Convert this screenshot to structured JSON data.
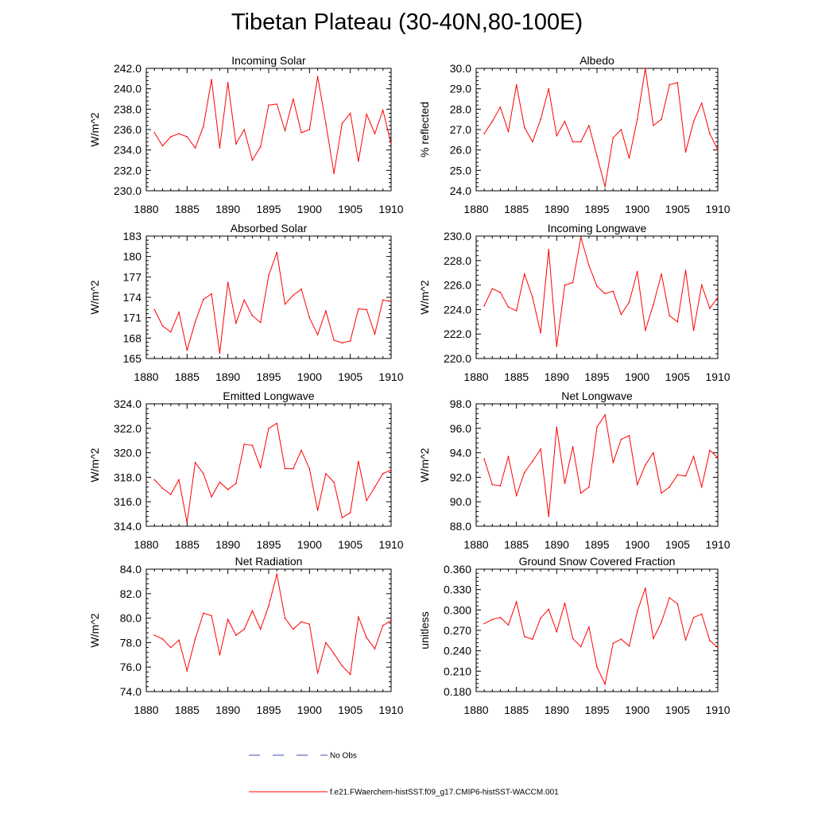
{
  "title": "Tibetan Plateau (30-40N,80-100E)",
  "legend": {
    "no_obs_label": "No Obs",
    "no_obs_color": "#3b4fb8",
    "model_label": "f.e21.FWaerchem-histSST.f09_g17.CMIP6-histSST-WACCM.001",
    "model_color": "#ff0000"
  },
  "chart_data": [
    {
      "type": "line",
      "title": "Incoming Solar",
      "ylabel": "W/m^2",
      "xlim": [
        1880,
        1910
      ],
      "ylim": [
        230,
        242
      ],
      "yticks": [
        "230.0",
        "232.0",
        "234.0",
        "236.0",
        "238.0",
        "240.0",
        "242.0"
      ],
      "xticks": [
        "1880",
        "1885",
        "1890",
        "1895",
        "1900",
        "1905",
        "1910"
      ],
      "x": [
        1881,
        1882,
        1883,
        1884,
        1885,
        1886,
        1887,
        1888,
        1889,
        1890,
        1891,
        1892,
        1893,
        1894,
        1895,
        1896,
        1897,
        1898,
        1899,
        1900,
        1901,
        1902,
        1903,
        1904,
        1905,
        1906,
        1907,
        1908,
        1909,
        1910
      ],
      "values": [
        235.7,
        234.4,
        235.3,
        235.6,
        235.3,
        234.2,
        236.3,
        240.9,
        234.2,
        240.6,
        234.6,
        236.0,
        233.0,
        234.3,
        238.4,
        238.5,
        235.9,
        239.0,
        235.7,
        236.0,
        241.2,
        236.6,
        231.7,
        236.6,
        237.6,
        232.9,
        237.5,
        235.6,
        237.9,
        234.6
      ]
    },
    {
      "type": "line",
      "title": "Albedo",
      "ylabel": "% reflected",
      "xlim": [
        1880,
        1910
      ],
      "ylim": [
        24,
        30
      ],
      "yticks": [
        "24.0",
        "25.0",
        "26.0",
        "27.0",
        "28.0",
        "29.0",
        "30.0"
      ],
      "xticks": [
        "1880",
        "1885",
        "1890",
        "1895",
        "1900",
        "1905",
        "1910"
      ],
      "x": [
        1881,
        1882,
        1883,
        1884,
        1885,
        1886,
        1887,
        1888,
        1889,
        1890,
        1891,
        1892,
        1893,
        1894,
        1895,
        1896,
        1897,
        1898,
        1899,
        1900,
        1901,
        1902,
        1903,
        1904,
        1905,
        1906,
        1907,
        1908,
        1909,
        1910
      ],
      "values": [
        26.8,
        27.4,
        28.1,
        26.9,
        29.2,
        27.1,
        26.4,
        27.5,
        29.0,
        26.7,
        27.4,
        26.4,
        26.4,
        27.2,
        25.7,
        24.2,
        26.6,
        27.0,
        25.6,
        27.5,
        30.0,
        27.2,
        27.5,
        29.2,
        29.3,
        25.9,
        27.4,
        28.3,
        26.8,
        26.0
      ]
    },
    {
      "type": "line",
      "title": "Absorbed Solar",
      "ylabel": "W/m^2",
      "xlim": [
        1880,
        1910
      ],
      "ylim": [
        165,
        183
      ],
      "yticks": [
        "165",
        "168",
        "171",
        "174",
        "177",
        "180",
        "183"
      ],
      "xticks": [
        "1880",
        "1885",
        "1890",
        "1895",
        "1900",
        "1905",
        "1910"
      ],
      "x": [
        1881,
        1882,
        1883,
        1884,
        1885,
        1886,
        1887,
        1888,
        1889,
        1890,
        1891,
        1892,
        1893,
        1894,
        1895,
        1896,
        1897,
        1898,
        1899,
        1900,
        1901,
        1902,
        1903,
        1904,
        1905,
        1906,
        1907,
        1908,
        1909,
        1910
      ],
      "values": [
        172.2,
        169.8,
        168.9,
        171.8,
        166.2,
        170.4,
        173.7,
        174.5,
        165.8,
        176.2,
        170.2,
        173.6,
        171.3,
        170.3,
        177.2,
        180.6,
        173.0,
        174.3,
        175.2,
        171.0,
        168.5,
        172.0,
        167.7,
        167.3,
        167.6,
        172.3,
        172.2,
        168.6,
        173.6,
        173.4
      ]
    },
    {
      "type": "line",
      "title": "Incoming Longwave",
      "ylabel": "W/m^2",
      "xlim": [
        1880,
        1910
      ],
      "ylim": [
        220,
        230
      ],
      "yticks": [
        "220.0",
        "222.0",
        "224.0",
        "226.0",
        "228.0",
        "230.0"
      ],
      "xticks": [
        "1880",
        "1885",
        "1890",
        "1895",
        "1900",
        "1905",
        "1910"
      ],
      "x": [
        1881,
        1882,
        1883,
        1884,
        1885,
        1886,
        1887,
        1888,
        1889,
        1890,
        1891,
        1892,
        1893,
        1894,
        1895,
        1896,
        1897,
        1898,
        1899,
        1900,
        1901,
        1902,
        1903,
        1904,
        1905,
        1906,
        1907,
        1908,
        1909,
        1910
      ],
      "values": [
        224.3,
        225.7,
        225.4,
        224.2,
        223.9,
        226.9,
        225.0,
        222.1,
        228.9,
        221.0,
        226.0,
        226.2,
        229.9,
        227.6,
        225.9,
        225.3,
        225.5,
        223.6,
        224.6,
        227.1,
        222.3,
        224.4,
        226.9,
        223.5,
        223.0,
        227.2,
        222.3,
        226.0,
        224.1,
        225.0
      ]
    },
    {
      "type": "line",
      "title": "Emitted Longwave",
      "ylabel": "W/m^2",
      "xlim": [
        1880,
        1910
      ],
      "ylim": [
        314,
        324
      ],
      "yticks": [
        "314.0",
        "316.0",
        "318.0",
        "320.0",
        "322.0",
        "324.0"
      ],
      "xticks": [
        "1880",
        "1885",
        "1890",
        "1895",
        "1900",
        "1905",
        "1910"
      ],
      "x": [
        1881,
        1882,
        1883,
        1884,
        1885,
        1886,
        1887,
        1888,
        1889,
        1890,
        1891,
        1892,
        1893,
        1894,
        1895,
        1896,
        1897,
        1898,
        1899,
        1900,
        1901,
        1902,
        1903,
        1904,
        1905,
        1906,
        1907,
        1908,
        1909,
        1910
      ],
      "values": [
        317.8,
        317.1,
        316.6,
        317.8,
        314.3,
        319.2,
        318.3,
        316.4,
        317.6,
        317.0,
        317.5,
        320.7,
        320.6,
        318.8,
        322.0,
        322.4,
        318.7,
        318.7,
        320.2,
        318.7,
        315.3,
        318.3,
        317.6,
        314.7,
        315.1,
        319.3,
        316.1,
        317.2,
        318.3,
        318.6
      ]
    },
    {
      "type": "line",
      "title": "Net Longwave",
      "ylabel": "W/m^2",
      "xlim": [
        1880,
        1910
      ],
      "ylim": [
        88,
        98
      ],
      "yticks": [
        "88.0",
        "90.0",
        "92.0",
        "94.0",
        "96.0",
        "98.0"
      ],
      "xticks": [
        "1880",
        "1885",
        "1890",
        "1895",
        "1900",
        "1905",
        "1910"
      ],
      "x": [
        1881,
        1882,
        1883,
        1884,
        1885,
        1886,
        1887,
        1888,
        1889,
        1890,
        1891,
        1892,
        1893,
        1894,
        1895,
        1896,
        1897,
        1898,
        1899,
        1900,
        1901,
        1902,
        1903,
        1904,
        1905,
        1906,
        1907,
        1908,
        1909,
        1910
      ],
      "values": [
        93.5,
        91.4,
        91.3,
        93.7,
        90.5,
        92.4,
        93.3,
        94.3,
        88.8,
        96.1,
        91.5,
        94.5,
        90.7,
        91.2,
        96.1,
        97.1,
        93.2,
        95.1,
        95.4,
        91.4,
        93.0,
        94.0,
        90.7,
        91.2,
        92.2,
        92.1,
        93.7,
        91.2,
        94.2,
        93.6
      ]
    },
    {
      "type": "line",
      "title": "Net Radiation",
      "ylabel": "W/m^2",
      "xlim": [
        1880,
        1910
      ],
      "ylim": [
        74,
        84
      ],
      "yticks": [
        "74.0",
        "76.0",
        "78.0",
        "80.0",
        "82.0",
        "84.0"
      ],
      "xticks": [
        "1880",
        "1885",
        "1890",
        "1895",
        "1900",
        "1905",
        "1910"
      ],
      "x": [
        1881,
        1882,
        1883,
        1884,
        1885,
        1886,
        1887,
        1888,
        1889,
        1890,
        1891,
        1892,
        1893,
        1894,
        1895,
        1896,
        1897,
        1898,
        1899,
        1900,
        1901,
        1902,
        1903,
        1904,
        1905,
        1906,
        1907,
        1908,
        1909,
        1910
      ],
      "values": [
        78.6,
        78.3,
        77.6,
        78.2,
        75.7,
        78.3,
        80.4,
        80.2,
        77.0,
        79.9,
        78.6,
        79.1,
        80.6,
        79.1,
        81.0,
        83.6,
        80.0,
        79.1,
        79.7,
        79.5,
        75.5,
        78.0,
        77.1,
        76.1,
        75.4,
        80.1,
        78.4,
        77.5,
        79.4,
        79.8
      ]
    },
    {
      "type": "line",
      "title": "Ground Snow Covered Fraction",
      "ylabel": "unitless",
      "xlim": [
        1880,
        1910
      ],
      "ylim": [
        0.18,
        0.36
      ],
      "yticks": [
        "0.180",
        "0.210",
        "0.240",
        "0.270",
        "0.300",
        "0.330",
        "0.360"
      ],
      "xticks": [
        "1880",
        "1885",
        "1890",
        "1895",
        "1900",
        "1905",
        "1910"
      ],
      "x": [
        1881,
        1882,
        1883,
        1884,
        1885,
        1886,
        1887,
        1888,
        1889,
        1890,
        1891,
        1892,
        1893,
        1894,
        1895,
        1896,
        1897,
        1898,
        1899,
        1900,
        1901,
        1902,
        1903,
        1904,
        1905,
        1906,
        1907,
        1908,
        1909,
        1910
      ],
      "values": [
        0.28,
        0.286,
        0.289,
        0.278,
        0.312,
        0.261,
        0.257,
        0.288,
        0.301,
        0.268,
        0.31,
        0.258,
        0.246,
        0.275,
        0.216,
        0.191,
        0.251,
        0.257,
        0.247,
        0.298,
        0.332,
        0.258,
        0.282,
        0.318,
        0.309,
        0.256,
        0.289,
        0.294,
        0.255,
        0.245
      ]
    }
  ]
}
